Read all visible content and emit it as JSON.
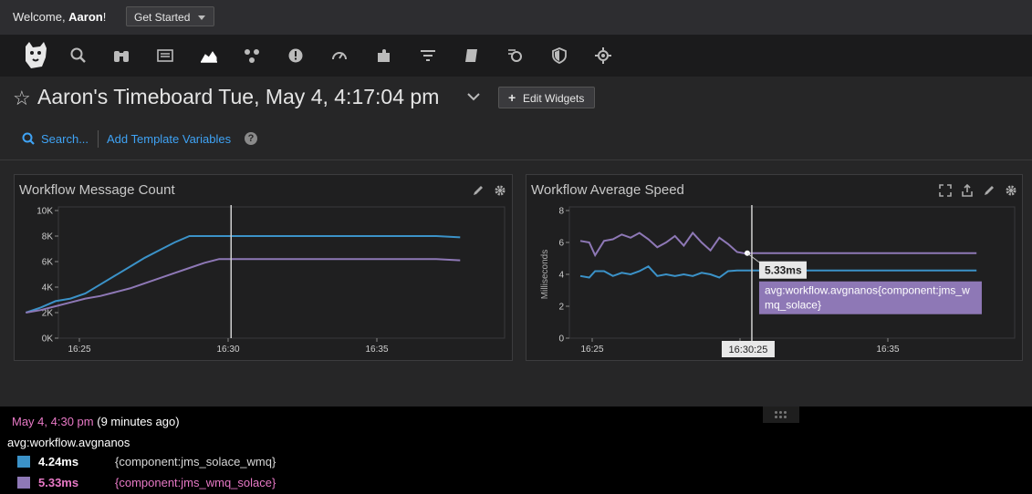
{
  "topbar": {
    "welcome_prefix": "Welcome, ",
    "welcome_name": "Aaron",
    "welcome_suffix": "!",
    "get_started_label": "Get Started"
  },
  "nav": {
    "icons": [
      "dog-logo-icon",
      "search-icon",
      "binoculars-icon",
      "list-icon",
      "chart-area-icon",
      "nodes-icon",
      "alert-icon",
      "gauge-icon",
      "puzzle-icon",
      "filter-icon",
      "notebook-icon",
      "synthetics-icon",
      "shield-icon",
      "gear-bug-icon"
    ]
  },
  "dashboard": {
    "title": "Aaron's Timeboard Tue, May 4, 4:17:04 pm",
    "edit_widgets_label": "Edit Widgets",
    "search_label": "Search...",
    "add_template_label": "Add Template Variables",
    "help_label": "?"
  },
  "colors": {
    "blue": "#3b92c8",
    "purple": "#8e78b6",
    "pink": "#e879c6",
    "link": "#3fa3f5"
  },
  "widgets": [
    {
      "title": "Workflow Message Count",
      "icons": [
        "pencil-icon",
        "gear-icon"
      ],
      "chart_data": {
        "type": "line",
        "ylim": [
          0,
          10000
        ],
        "y_ticks": [
          "0K",
          "2K",
          "4K",
          "6K",
          "8K",
          "10K"
        ],
        "x_ticks": [
          "16:25",
          "16:30",
          "16:35"
        ],
        "cursor_x_minutes": 30.1,
        "series": [
          {
            "color": "#3b92c8",
            "x_minutes": [
              23.2,
              23.7,
              24.2,
              24.7,
              25.2,
              25.7,
              26.2,
              26.7,
              27.2,
              27.7,
              28.2,
              28.7,
              29.2,
              29.7,
              30.2,
              31,
              32,
              33,
              34,
              35,
              36,
              37,
              37.8
            ],
            "values": [
              2000,
              2400,
              2900,
              3100,
              3500,
              4200,
              4900,
              5600,
              6300,
              6900,
              7500,
              8000,
              8000,
              8000,
              8000,
              8000,
              8000,
              8000,
              8000,
              8000,
              8000,
              8000,
              7900
            ]
          },
          {
            "color": "#8e78b6",
            "x_minutes": [
              23.2,
              23.7,
              24.2,
              24.7,
              25.2,
              25.7,
              26.2,
              26.7,
              27.2,
              27.7,
              28.2,
              28.7,
              29.2,
              29.7,
              30.2,
              31,
              32,
              33,
              34,
              35,
              36,
              37,
              37.8
            ],
            "values": [
              2000,
              2200,
              2500,
              2800,
              3100,
              3300,
              3600,
              3900,
              4300,
              4700,
              5100,
              5500,
              5900,
              6200,
              6200,
              6200,
              6200,
              6200,
              6200,
              6200,
              6200,
              6200,
              6100
            ]
          }
        ]
      }
    },
    {
      "title": "Workflow Average Speed",
      "icons": [
        "expand-icon",
        "share-icon",
        "pencil-icon",
        "gear-icon"
      ],
      "chart_data": {
        "type": "line",
        "ylabel": "Milliseconds",
        "ylim": [
          0,
          8
        ],
        "y_ticks": [
          "0",
          "2",
          "4",
          "6",
          "8"
        ],
        "x_ticks": [
          "16:25",
          "16:30",
          "16:35"
        ],
        "cursor_x_minutes": 30.4,
        "cursor_label": "16:30:25",
        "hover_value": "5.33ms",
        "hover_series": "avg:workflow.avgnanos{component:jms_wmq_solace}",
        "series": [
          {
            "color": "#8e78b6",
            "x_minutes": [
              24.6,
              24.9,
              25.1,
              25.4,
              25.7,
              26,
              26.3,
              26.6,
              26.9,
              27.2,
              27.5,
              27.8,
              28.1,
              28.4,
              28.7,
              29,
              29.3,
              29.6,
              29.9,
              30.2,
              30.4,
              31,
              32,
              33,
              34,
              35,
              36,
              37,
              38
            ],
            "values": [
              6.1,
              6.0,
              5.2,
              6.1,
              6.2,
              6.5,
              6.3,
              6.6,
              6.2,
              5.7,
              6.0,
              6.4,
              5.8,
              6.6,
              6.0,
              5.5,
              6.3,
              5.9,
              5.4,
              5.3,
              5.33,
              5.33,
              5.33,
              5.33,
              5.33,
              5.33,
              5.33,
              5.33,
              5.33
            ]
          },
          {
            "color": "#3b92c8",
            "x_minutes": [
              24.6,
              24.9,
              25.1,
              25.4,
              25.7,
              26,
              26.3,
              26.6,
              26.9,
              27.2,
              27.5,
              27.8,
              28.1,
              28.4,
              28.7,
              29,
              29.3,
              29.6,
              29.9,
              30.2,
              30.4,
              31,
              32,
              33,
              34,
              35,
              36,
              37,
              38
            ],
            "values": [
              3.9,
              3.8,
              4.2,
              4.2,
              3.9,
              4.1,
              4.0,
              4.2,
              4.5,
              3.9,
              4.0,
              3.9,
              4.0,
              3.9,
              4.1,
              4.0,
              3.8,
              4.2,
              4.24,
              4.24,
              4.24,
              4.24,
              4.24,
              4.24,
              4.24,
              4.24,
              4.24,
              4.24,
              4.24
            ]
          }
        ]
      }
    }
  ],
  "bottom_panel": {
    "time": "May 4, 4:30 pm",
    "ago": "(9 minutes ago)",
    "metric": "avg:workflow.avgnanos",
    "rows": [
      {
        "value": "4.24ms",
        "tag": "{component:jms_solace_wmq}",
        "swatch": "#3b92c8",
        "color": "#ffffff",
        "tagcolor": "#d8d8d8"
      },
      {
        "value": "5.33ms",
        "tag": "{component:jms_wmq_solace}",
        "swatch": "#8e78b6",
        "color": "#e879c6",
        "tagcolor": "#e879c6"
      }
    ]
  }
}
